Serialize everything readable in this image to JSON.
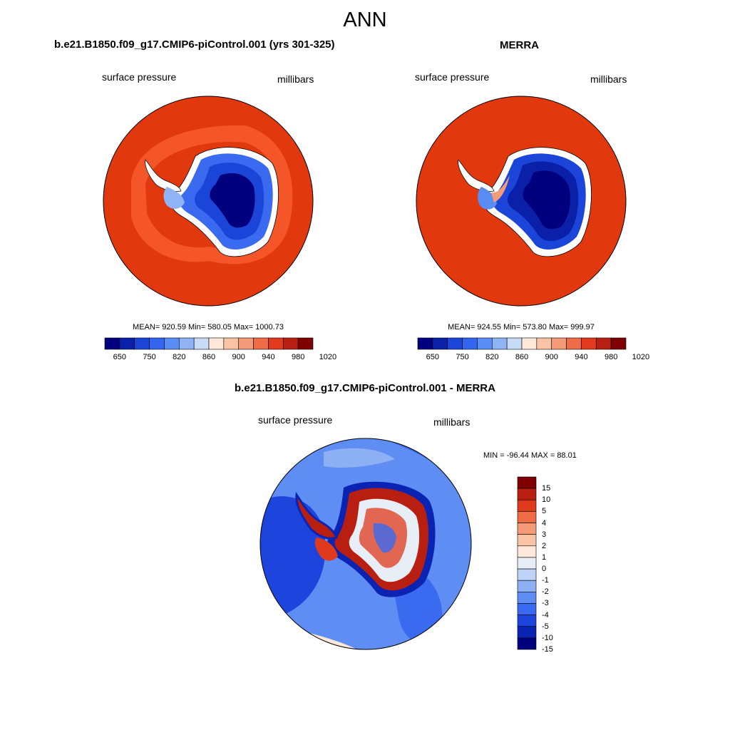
{
  "page_title": "ANN",
  "palette": {
    "abs": [
      "#00007f",
      "#0a20a8",
      "#1a45d8",
      "#3366f0",
      "#5a8cf5",
      "#8fb3f5",
      "#c8dcf8",
      "#fde8da",
      "#f9c3a6",
      "#f59a76",
      "#f06c46",
      "#e23a1c",
      "#b81f10",
      "#7f0000"
    ],
    "diff": [
      "#00007f",
      "#0a23b3",
      "#1d44dd",
      "#3a6af0",
      "#5e8ef3",
      "#8db0f5",
      "#bfd2f8",
      "#e8eef6",
      "#fde8da",
      "#f9c3a6",
      "#f59a76",
      "#f06c46",
      "#e03a1c",
      "#b81f10",
      "#7f0000"
    ]
  },
  "panels": [
    {
      "title": "b.e21.B1850.f09_g17.CMIP6-piControl.001 (yrs 301-325)",
      "variable": "surface pressure",
      "units": "millibars",
      "stats": "MEAN= 920.59  Min= 580.05  Max= 1000.73",
      "colorbar_labels": [
        "650",
        "750",
        "820",
        "860",
        "900",
        "940",
        "980",
        "1020"
      ]
    },
    {
      "title": "MERRA",
      "variable": "surface pressure",
      "units": "millibars",
      "stats": "MEAN= 924.55  Min= 573.80  Max= 999.97",
      "colorbar_labels": [
        "650",
        "750",
        "820",
        "860",
        "900",
        "940",
        "980",
        "1020"
      ]
    },
    {
      "title": "b.e21.B1850.f09_g17.CMIP6-piControl.001 - MERRA",
      "variable": "surface pressure",
      "units": "millibars",
      "stats": "MIN = -96.44 MAX =  88.01",
      "colorbar_labels": [
        "15",
        "10",
        "5",
        "4",
        "3",
        "2",
        "1",
        "0",
        "-1",
        "-2",
        "-3",
        "-4",
        "-5",
        "-10",
        "-15"
      ]
    }
  ]
}
